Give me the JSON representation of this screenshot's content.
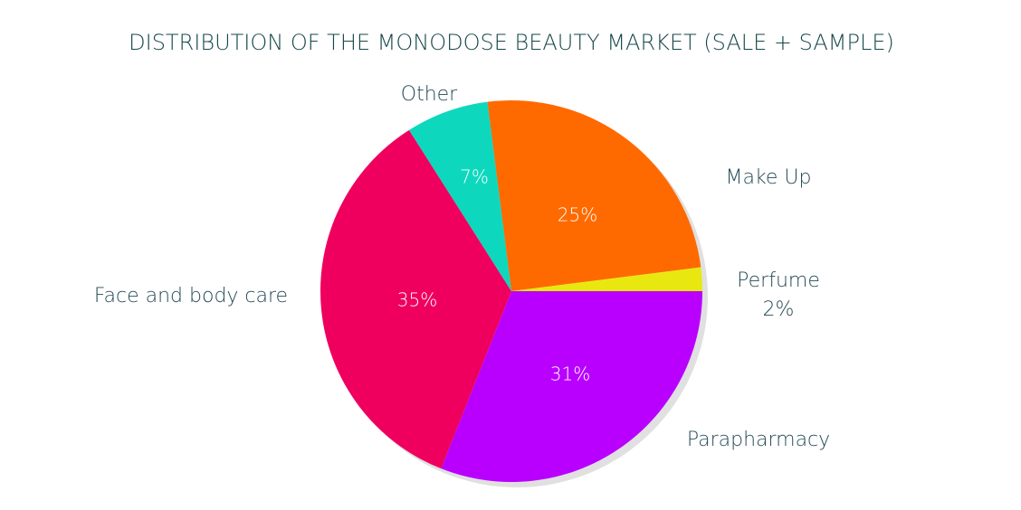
{
  "chart_data": {
    "type": "pie",
    "title": "DISTRIBUTION OF THE MONODOSE BEAUTY MARKET (SALE + SAMPLE)",
    "categories": [
      "Parapharmacy",
      "Face and body care",
      "Other",
      "Make Up",
      "Perfume"
    ],
    "values": [
      31,
      35,
      7,
      25,
      2
    ],
    "value_labels": [
      "31%",
      "35%",
      "7%",
      "25%",
      "2%"
    ],
    "colors": [
      "#b900ff",
      "#f0005e",
      "#0dd8bd",
      "#ff6a00",
      "#e8e810"
    ]
  }
}
